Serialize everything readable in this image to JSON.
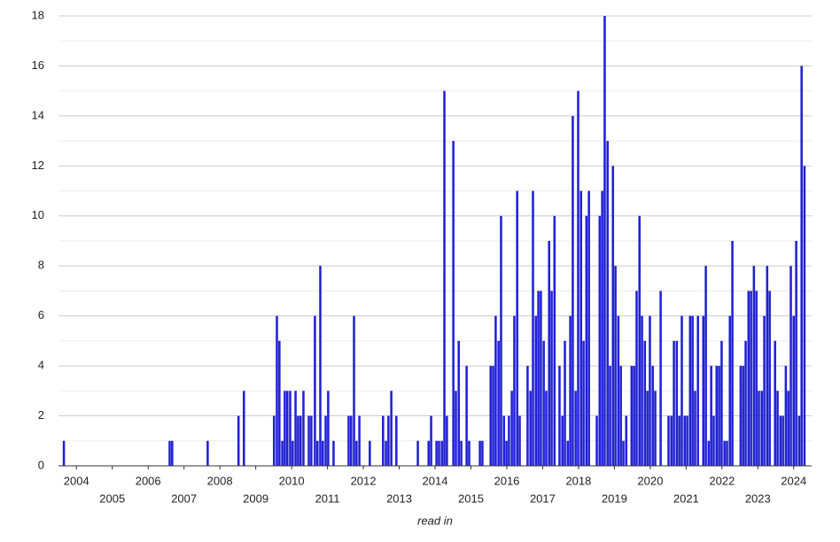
{
  "chart_data": {
    "type": "bar",
    "x_label": "read in",
    "color": "#1f1fd6",
    "bar_width": 0.0833,
    "x": [
      2003.65,
      2006.6,
      2006.67,
      2007.66,
      2008.52,
      2008.67,
      2009.51,
      2009.59,
      2009.66,
      2009.74,
      2009.81,
      2009.88,
      2009.96,
      2010.03,
      2010.11,
      2010.18,
      2010.25,
      2010.33,
      2010.48,
      2010.55,
      2010.65,
      2010.72,
      2010.8,
      2010.87,
      2010.95,
      2011.02,
      2011.17,
      2011.59,
      2011.66,
      2011.74,
      2011.81,
      2011.89,
      2012.18,
      2012.55,
      2012.63,
      2012.7,
      2012.78,
      2012.92,
      2013.52,
      2013.82,
      2013.89,
      2014.04,
      2014.11,
      2014.19,
      2014.26,
      2014.33,
      2014.51,
      2014.58,
      2014.66,
      2014.73,
      2014.88,
      2014.95,
      2015.25,
      2015.32,
      2015.55,
      2015.62,
      2015.69,
      2015.77,
      2015.84,
      2015.92,
      2015.99,
      2016.06,
      2016.14,
      2016.21,
      2016.29,
      2016.36,
      2016.58,
      2016.66,
      2016.73,
      2016.81,
      2016.88,
      2016.95,
      2017.03,
      2017.1,
      2017.18,
      2017.25,
      2017.33,
      2017.47,
      2017.55,
      2017.62,
      2017.7,
      2017.77,
      2017.84,
      2017.92,
      2017.99,
      2018.07,
      2018.14,
      2018.22,
      2018.29,
      2018.51,
      2018.59,
      2018.66,
      2018.73,
      2018.81,
      2018.88,
      2018.96,
      2019.03,
      2019.11,
      2019.18,
      2019.25,
      2019.33,
      2019.48,
      2019.55,
      2019.62,
      2019.7,
      2019.77,
      2019.85,
      2019.92,
      2019.99,
      2020.07,
      2020.14,
      2020.29,
      2020.51,
      2020.59,
      2020.66,
      2020.74,
      2020.81,
      2020.88,
      2020.96,
      2021.03,
      2021.11,
      2021.18,
      2021.25,
      2021.33,
      2021.48,
      2021.55,
      2021.63,
      2021.7,
      2021.77,
      2021.85,
      2021.92,
      2021.99,
      2022.07,
      2022.14,
      2022.22,
      2022.29,
      2022.52,
      2022.59,
      2022.66,
      2022.74,
      2022.81,
      2022.89,
      2022.96,
      2023.03,
      2023.11,
      2023.18,
      2023.26,
      2023.33,
      2023.48,
      2023.55,
      2023.63,
      2023.7,
      2023.78,
      2023.85,
      2023.92,
      2024.0,
      2024.07,
      2024.15,
      2024.22,
      2024.3
    ],
    "values": [
      1,
      1,
      1,
      1,
      2,
      3,
      2,
      6,
      5,
      1,
      3,
      3,
      3,
      1,
      3,
      2,
      2,
      3,
      2,
      2,
      6,
      1,
      8,
      1,
      2,
      3,
      1,
      2,
      2,
      6,
      1,
      2,
      1,
      2,
      1,
      2,
      3,
      2,
      1,
      1,
      2,
      1,
      1,
      1,
      15,
      2,
      13,
      3,
      5,
      1,
      4,
      1,
      1,
      1,
      4,
      4,
      6,
      5,
      10,
      2,
      1,
      2,
      3,
      6,
      11,
      2,
      4,
      3,
      11,
      6,
      7,
      7,
      5,
      3,
      9,
      7,
      10,
      4,
      2,
      5,
      1,
      6,
      14,
      3,
      15,
      11,
      5,
      10,
      11,
      2,
      10,
      11,
      18,
      13,
      4,
      12,
      8,
      6,
      4,
      1,
      2,
      4,
      4,
      7,
      10,
      6,
      5,
      3,
      6,
      4,
      3,
      7,
      2,
      2,
      5,
      5,
      2,
      6,
      2,
      2,
      6,
      6,
      3,
      6,
      6,
      8,
      1,
      4,
      2,
      4,
      4,
      5,
      1,
      1,
      6,
      9,
      4,
      4,
      5,
      7,
      7,
      8,
      7,
      3,
      3,
      6,
      8,
      7,
      5,
      3,
      2,
      2,
      4,
      3,
      8,
      6,
      9,
      2,
      16,
      12
    ],
    "xlim": [
      2003.5,
      2024.5
    ],
    "xticks": [
      2004,
      2005,
      2006,
      2007,
      2008,
      2009,
      2010,
      2011,
      2012,
      2013,
      2014,
      2015,
      2016,
      2017,
      2018,
      2019,
      2020,
      2021,
      2022,
      2023,
      2024
    ],
    "ylim": [
      0,
      18
    ],
    "yticks": [
      0,
      2,
      4,
      6,
      8,
      10,
      12,
      14,
      16,
      18
    ],
    "minor_yticks": [
      1,
      3,
      5,
      7,
      9,
      11,
      13,
      15,
      17
    ],
    "grid": true
  }
}
